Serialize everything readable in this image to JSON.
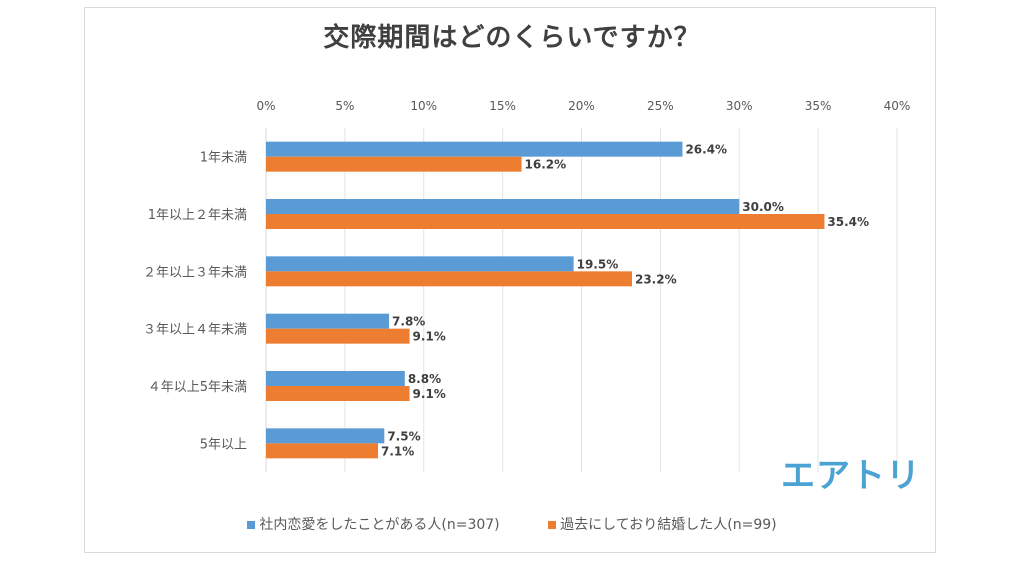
{
  "chart_data": {
    "type": "bar",
    "orientation": "horizontal",
    "title": "交際期間はどのくらいですか？",
    "xlabel": "",
    "ylabel": "",
    "xlim": [
      0,
      40
    ],
    "x_ticks": [
      "0%",
      "5%",
      "10%",
      "15%",
      "20%",
      "25%",
      "30%",
      "35%",
      "40%"
    ],
    "x_tick_values": [
      0,
      5,
      10,
      15,
      20,
      25,
      30,
      35,
      40
    ],
    "grid": true,
    "legend_position": "bottom",
    "categories": [
      "1年未満",
      "1年以上２年未満",
      "２年以上３年未満",
      "３年以上４年未満",
      "４年以上5年未満",
      "5年以上"
    ],
    "series": [
      {
        "name": "社内恋愛をしたことがある人(n=307)",
        "color": "#5b9bd5",
        "values": [
          26.4,
          30.0,
          19.5,
          7.8,
          8.8,
          7.5
        ],
        "labels": [
          "26.4%",
          "30.0%",
          "19.5%",
          "7.8%",
          "8.8%",
          "7.5%"
        ]
      },
      {
        "name": "過去にしており結婚した人(n=99)",
        "color": "#ed7d31",
        "values": [
          16.2,
          35.4,
          23.2,
          9.1,
          9.1,
          7.1
        ],
        "labels": [
          "16.2%",
          "35.4%",
          "23.2%",
          "9.1%",
          "9.1%",
          "7.1%"
        ]
      }
    ]
  },
  "branding": {
    "logo_text": "エアトリ",
    "logo_color": "#4ba3d3"
  }
}
